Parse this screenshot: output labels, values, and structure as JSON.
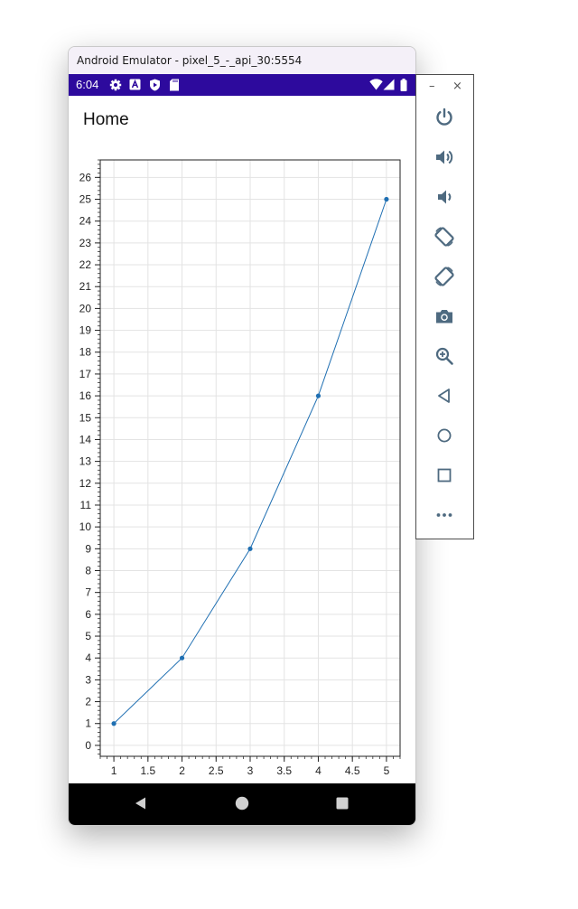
{
  "window": {
    "title": "Android Emulator - pixel_5_-_api_30:5554"
  },
  "status_bar": {
    "time": "6:04",
    "left_icons": [
      "gear-icon",
      "font-a-icon",
      "shield-play-icon",
      "sd-card-icon"
    ],
    "right_icons": [
      "wifi-icon",
      "signal-icon",
      "battery-icon"
    ],
    "bg_color": "#2d0a9d"
  },
  "app": {
    "page_title": "Home"
  },
  "chart_data": {
    "type": "line",
    "x": [
      1,
      2,
      3,
      4,
      5
    ],
    "series": [
      {
        "values": [
          1,
          4,
          9,
          16,
          25
        ]
      }
    ],
    "xlim": [
      0.8,
      5.2
    ],
    "ylim": [
      -0.5,
      26.8
    ],
    "x_ticks": [
      "1",
      "1.5",
      "2",
      "2.5",
      "3",
      "3.5",
      "4",
      "4.5",
      "5"
    ],
    "y_ticks": [
      "0",
      "1",
      "2",
      "3",
      "4",
      "5",
      "6",
      "7",
      "8",
      "9",
      "10",
      "11",
      "12",
      "13",
      "14",
      "15",
      "16",
      "17",
      "18",
      "19",
      "20",
      "21",
      "22",
      "23",
      "24",
      "25",
      "26"
    ],
    "grid": true,
    "line_color": "#1f6fb2"
  },
  "nav_bar": {
    "icons": [
      "back-icon",
      "home-icon",
      "recents-icon"
    ]
  },
  "side_panel": {
    "window_buttons": {
      "minimize": "–",
      "close": "×"
    },
    "tools": [
      "power-icon",
      "volume-up-icon",
      "volume-down-icon",
      "rotate-left-icon",
      "rotate-right-icon",
      "camera-icon",
      "zoom-icon",
      "back-icon",
      "home-icon",
      "overview-icon",
      "more-icon"
    ],
    "icon_color": "#4e6a80"
  }
}
